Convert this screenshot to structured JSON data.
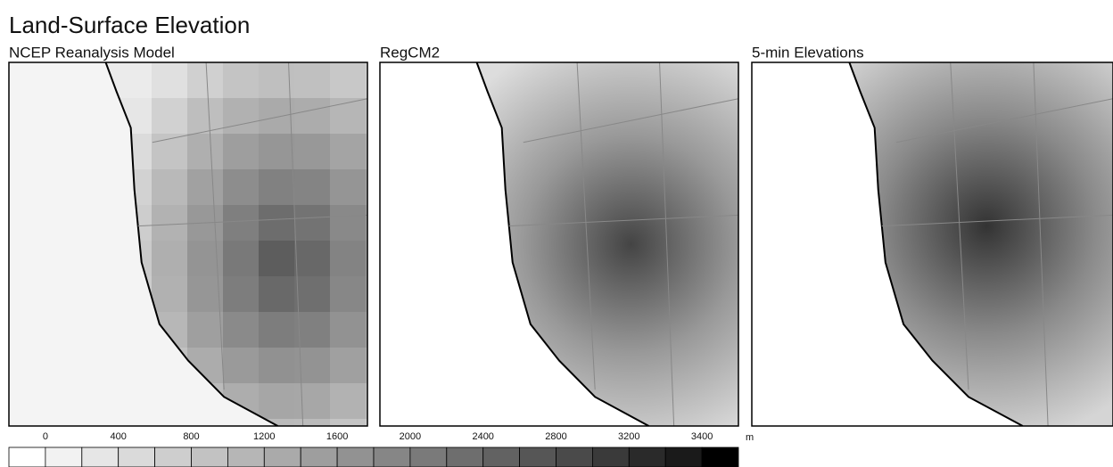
{
  "header": {
    "title": "Land-Surface Elevation"
  },
  "panels": [
    {
      "title": "NCEP Reanalysis Model"
    },
    {
      "title": "RegCM2"
    },
    {
      "title": "5-min Elevations"
    }
  ],
  "colorbar": {
    "levels": [
      0,
      400,
      800,
      1200,
      1600,
      2000,
      2400,
      2800,
      3200,
      3400
    ],
    "unit": "m",
    "colors": [
      "#ffffff",
      "#f2f2f2",
      "#e6e6e6",
      "#dadada",
      "#cecece",
      "#c2c2c2",
      "#b6b6b6",
      "#aaaaaa",
      "#9e9e9e",
      "#929292",
      "#868686",
      "#7a7a7a",
      "#6e6e6e",
      "#626262",
      "#565656",
      "#4a4a4a",
      "#3a3a3a",
      "#2a2a2a",
      "#1a1a1a",
      "#000000"
    ]
  }
}
